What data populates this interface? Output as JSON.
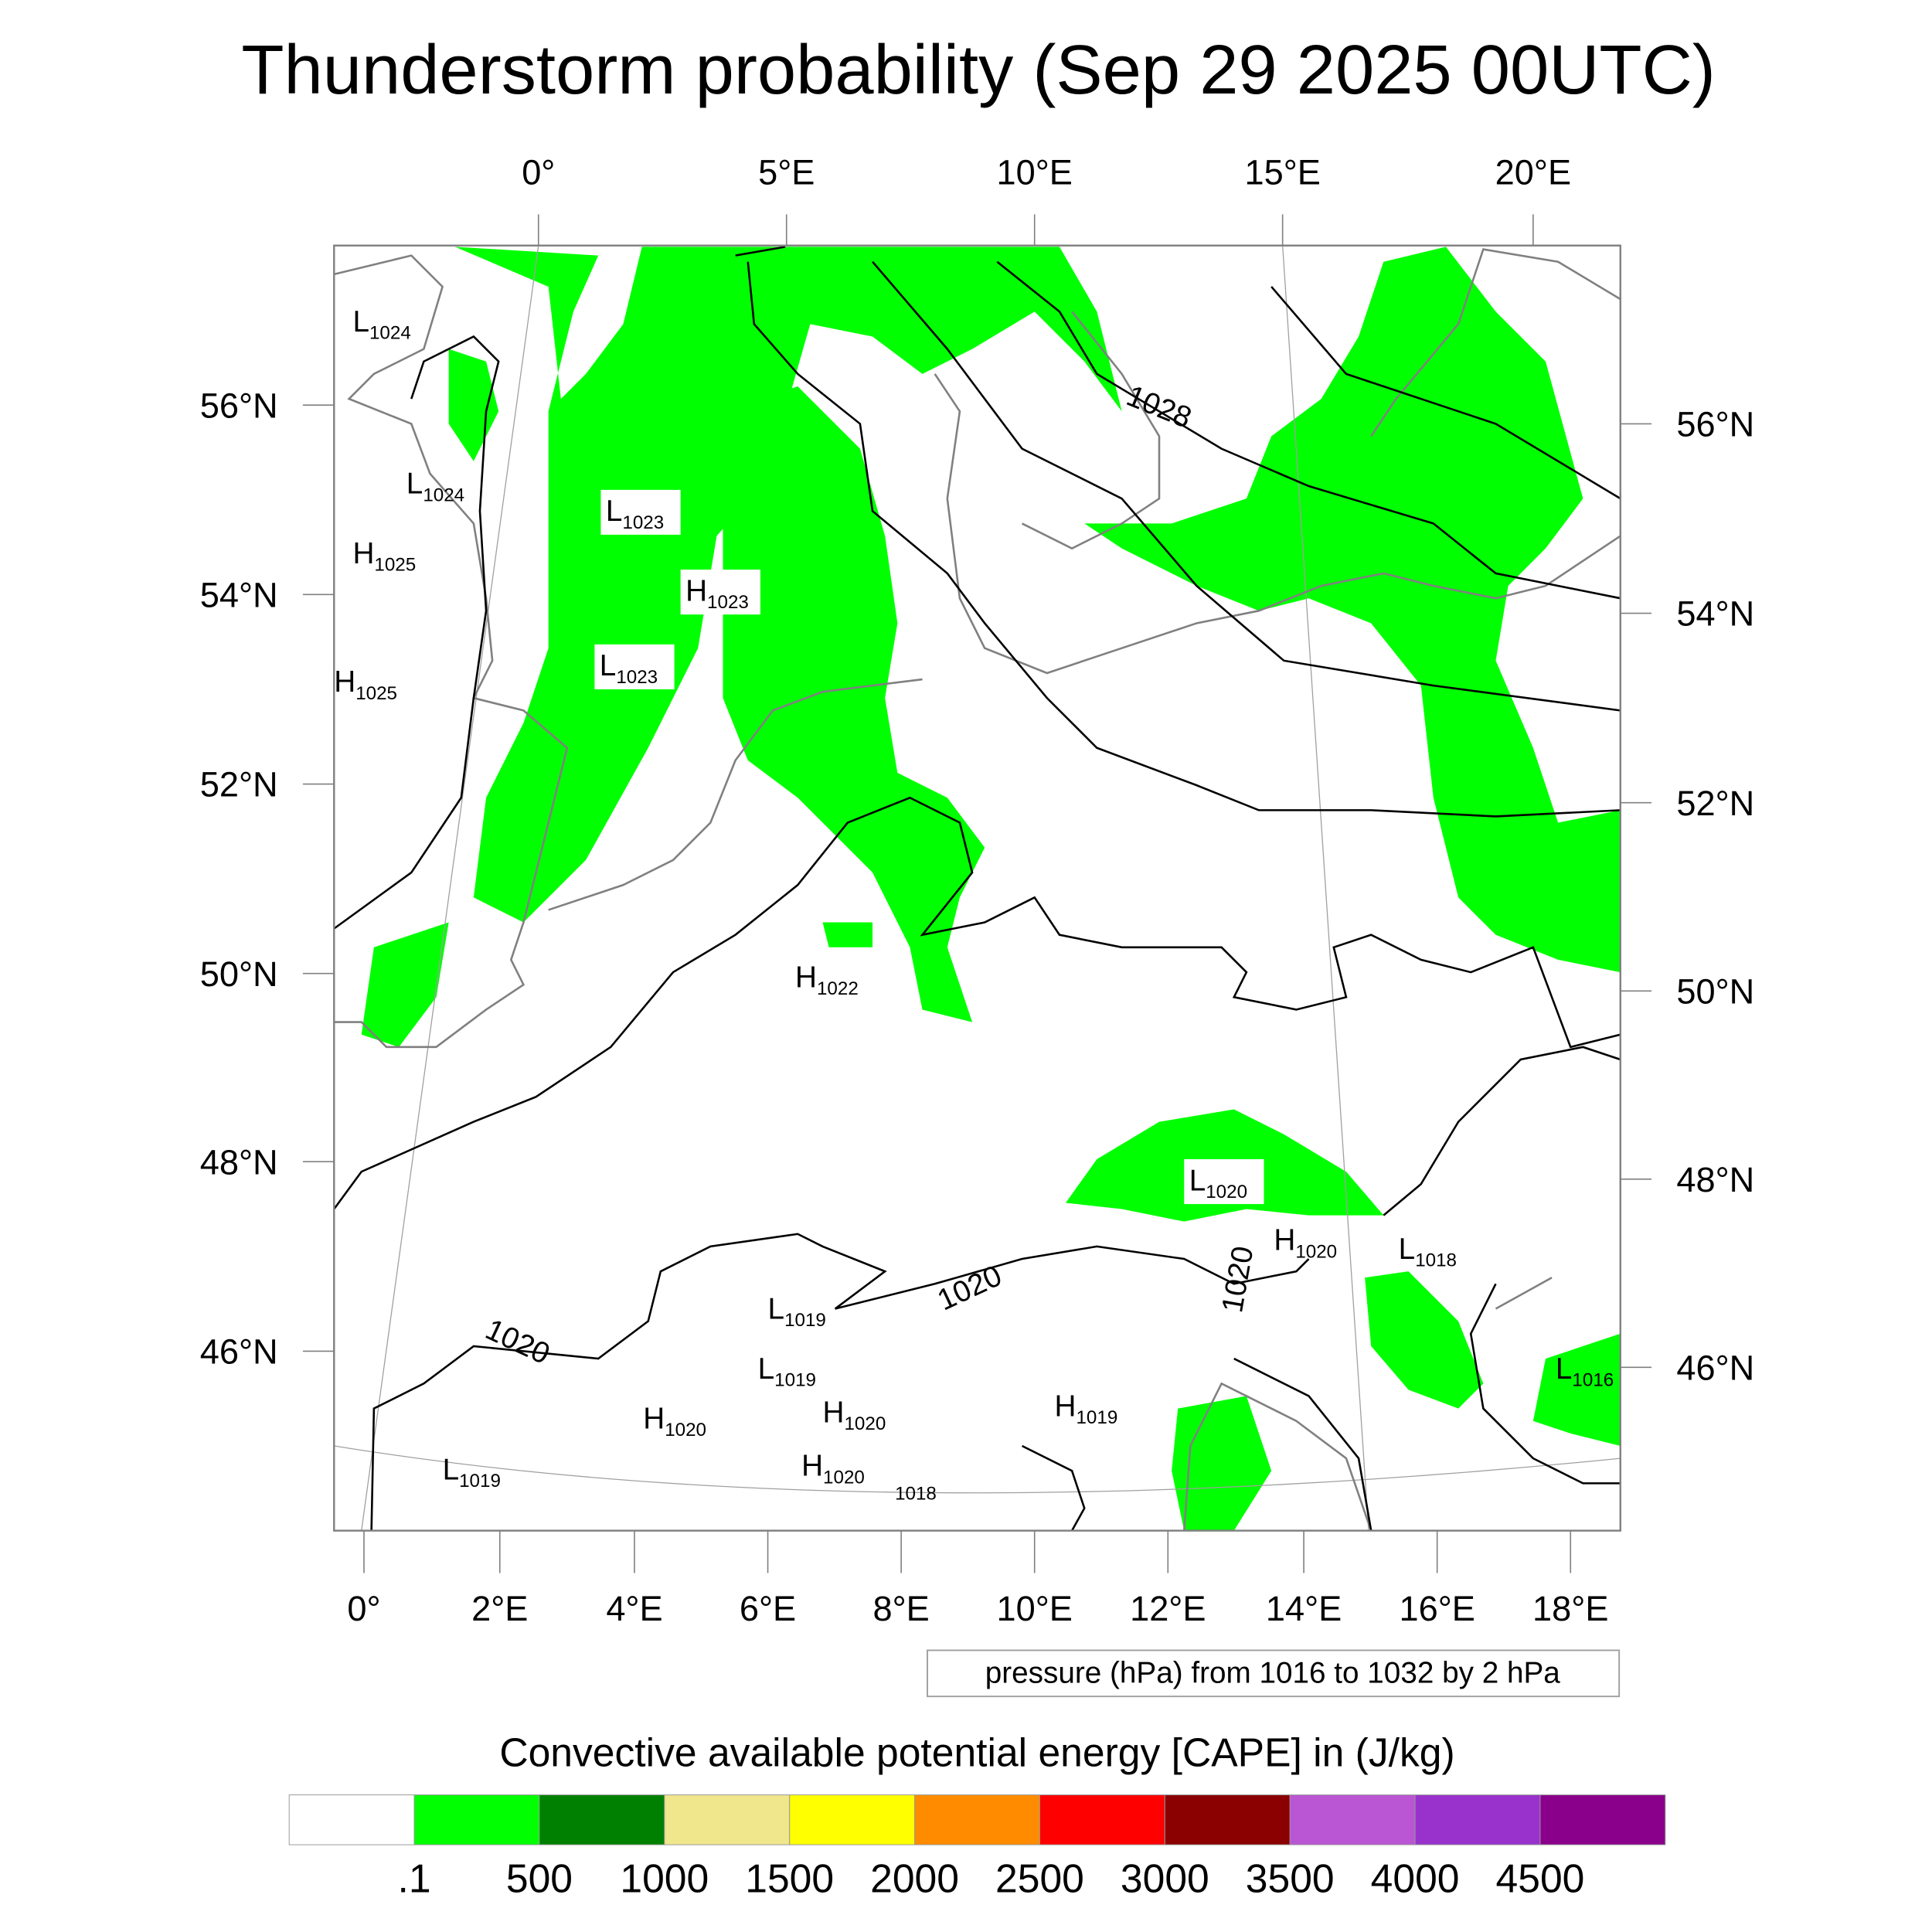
{
  "title": "Thunderstorm probability (Sep 29 2025 00UTC)",
  "top_lon_labels": [
    "0°",
    "5°E",
    "10°E",
    "15°E",
    "20°E"
  ],
  "left_lat_labels": [
    "56°N",
    "54°N",
    "52°N",
    "50°N",
    "48°N",
    "46°N"
  ],
  "right_lat_labels": [
    "56°N",
    "54°N",
    "52°N",
    "50°N",
    "48°N",
    "46°N"
  ],
  "bottom_lon_labels": [
    "0°",
    "2°E",
    "4°E",
    "6°E",
    "8°E",
    "10°E",
    "12°E",
    "14°E",
    "16°E",
    "18°E"
  ],
  "pressure_centers": [
    {
      "type": "L",
      "value": "1024"
    },
    {
      "type": "L",
      "value": "1024"
    },
    {
      "type": "H",
      "value": "1025"
    },
    {
      "type": "H",
      "value": "1025"
    },
    {
      "type": "L",
      "value": "1023"
    },
    {
      "type": "H",
      "value": "1023"
    },
    {
      "type": "L",
      "value": "1023"
    },
    {
      "type": "H",
      "value": "1022"
    },
    {
      "type": "L",
      "value": "1020"
    },
    {
      "type": "H",
      "value": "1020"
    },
    {
      "type": "L",
      "value": "1018"
    },
    {
      "type": "L",
      "value": "1019"
    },
    {
      "type": "L",
      "value": "1019"
    },
    {
      "type": "H",
      "value": "1020"
    },
    {
      "type": "H",
      "value": "1020"
    },
    {
      "type": "H",
      "value": "1019"
    },
    {
      "type": "H",
      "value": "1020"
    },
    {
      "type": "L",
      "value": "1019"
    },
    {
      "type": "L",
      "value": "1016"
    }
  ],
  "contour_labels": [
    "1028",
    "1020",
    "1020",
    "1020",
    "1018"
  ],
  "contour_info": "pressure (hPa) from 1016 to 1032 by 2 hPa",
  "colorbar": {
    "title": "Convective available potential energy [CAPE] in (J/kg)",
    "colors": [
      "#ffffff",
      "#00ff00",
      "#008000",
      "#f0e68c",
      "#ffff00",
      "#ff8c00",
      "#ff0000",
      "#8b0000",
      "#ba55d3",
      "#9932cc",
      "#8b008b"
    ],
    "labels": [
      ".1",
      "500",
      "1000",
      "1500",
      "2000",
      "2500",
      "3000",
      "3500",
      "4000",
      "4500"
    ]
  }
}
